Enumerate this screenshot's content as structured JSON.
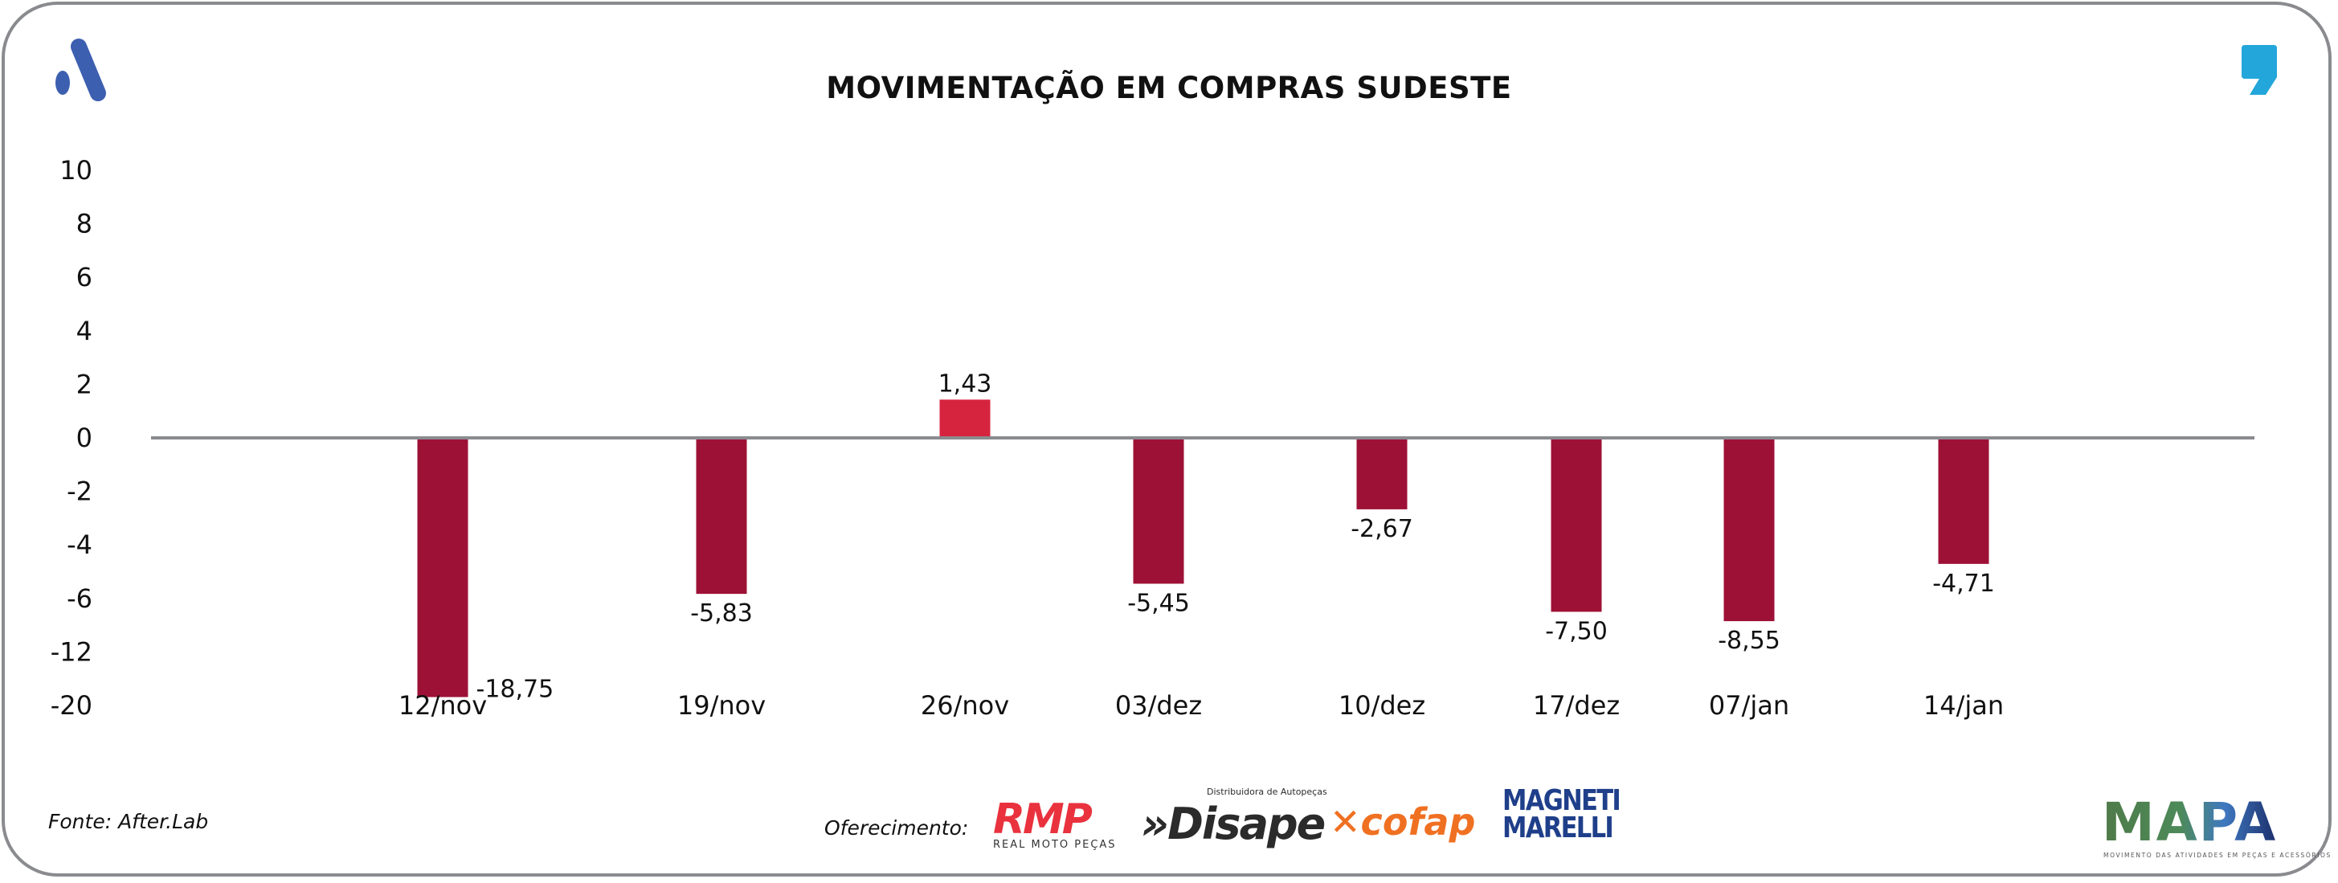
{
  "title": "MOVIMENTAÇÃO EM COMPRAS SUDESTE",
  "source": "Fonte: After.Lab",
  "sponsor_label": "Oferecimento:",
  "sponsors": {
    "rmp": "RMP",
    "rmp_sub": "REAL MOTO PEÇAS",
    "disape": "»Disape",
    "disape_sub": "Distribuidora de Autopeças",
    "cofap": "cofap",
    "magneti": "MAGNETI MARELLI"
  },
  "mapa": {
    "name": "MAPA",
    "subtitle": "MOVIMENTO DAS ATIVIDADES EM PEÇAS E ACESSÓRIOS"
  },
  "colors": {
    "negative": "#9e1136",
    "positive": "#d6243f",
    "axis": "#8a8b8f",
    "logo_left": "#3d5fb0",
    "logo_right": "#23a6d9"
  },
  "chart_data": {
    "type": "bar",
    "title": "MOVIMENTAÇÃO EM COMPRAS SUDESTE",
    "categories": [
      "12/nov",
      "19/nov",
      "26/nov",
      "03/dez",
      "10/dez",
      "17/dez",
      "07/jan",
      "14/jan"
    ],
    "values": [
      -18.75,
      -5.83,
      1.43,
      -5.45,
      -2.67,
      -7.5,
      -8.55,
      -4.71
    ],
    "value_labels": [
      "-18,75",
      "-5,83",
      "1,43",
      "-5,45",
      "-2,67",
      "-7,50",
      "-8,55",
      "-4,71"
    ],
    "yticks": [
      10,
      8,
      6,
      4,
      2,
      0,
      -2,
      -4,
      -6,
      -12,
      -20
    ],
    "ylim": [
      -20,
      10
    ],
    "xlabel": "",
    "ylabel": "",
    "grid": false,
    "legend": "none"
  }
}
